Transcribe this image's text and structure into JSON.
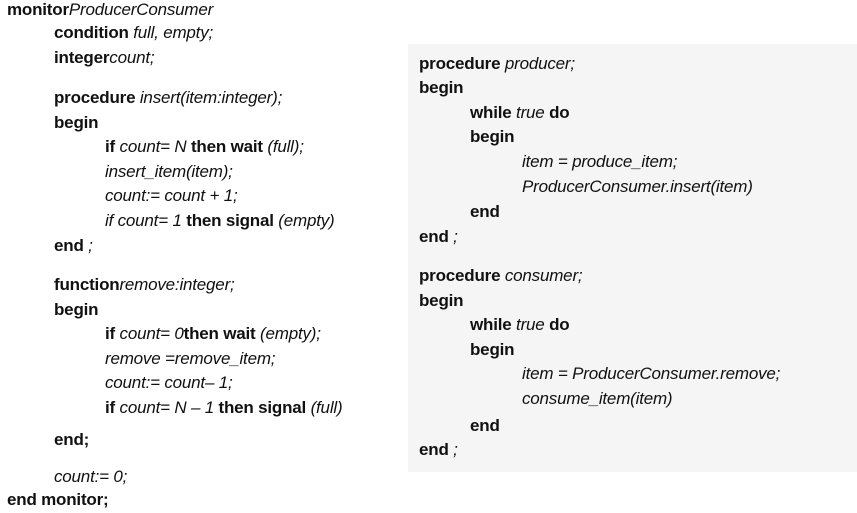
{
  "left": {
    "l1": {
      "kw": "monitor",
      "name": "ProducerConsumer"
    },
    "l2": {
      "kw": "condition ",
      "rest": "full, empty;"
    },
    "l3": {
      "kw": "integer",
      "rest": "count;"
    },
    "l4": {
      "kw": "procedure ",
      "rest": "insert(item:integer);"
    },
    "l5": "begin",
    "l6": {
      "s1": "if ",
      "s2": "count= N",
      "s3": " then wait ",
      "s4": "(full);"
    },
    "l7": "insert_item(item);",
    "l8": "count:= count + 1;",
    "l9": {
      "s1": "if count= 1",
      "s2": " then signal ",
      "s3": "(empty)"
    },
    "l10": {
      "kw": "end",
      "rest": " ;"
    },
    "l11": {
      "kw": "function",
      "rest": "remove:integer;"
    },
    "l12": "begin",
    "l13": {
      "s1": "if ",
      "s2": "count= 0",
      "s3": "then wait ",
      "s4": "(empty);"
    },
    "l14": "remove =remove_item;",
    "l15": "count:= count– 1;",
    "l16": {
      "s1": "if ",
      "s2": "count= N – 1",
      "s3": " then signal ",
      "s4": "(full)"
    },
    "l17": "end;",
    "l18": "count:= 0;",
    "l19": "end monitor;"
  },
  "right": {
    "r1": {
      "kw": "procedure ",
      "rest": "producer;"
    },
    "r2": "begin",
    "r3": {
      "s1": "while ",
      "s2": "true",
      "s3": " do"
    },
    "r4": "begin",
    "r5": "item = produce_item;",
    "r6": "ProducerConsumer.insert(item)",
    "r7": "end",
    "r8": {
      "kw": "end",
      "rest": " ;"
    },
    "r9": {
      "kw": "procedure ",
      "rest": "consumer;"
    },
    "r10": "begin",
    "r11": {
      "s1": "while ",
      "s2": "true",
      "s3": " do"
    },
    "r12": "begin",
    "r13": "item = ProducerConsumer.remove;",
    "r14": "consume_item(item)",
    "r15": "end",
    "r16": {
      "kw": "end",
      "rest": " ;"
    }
  }
}
